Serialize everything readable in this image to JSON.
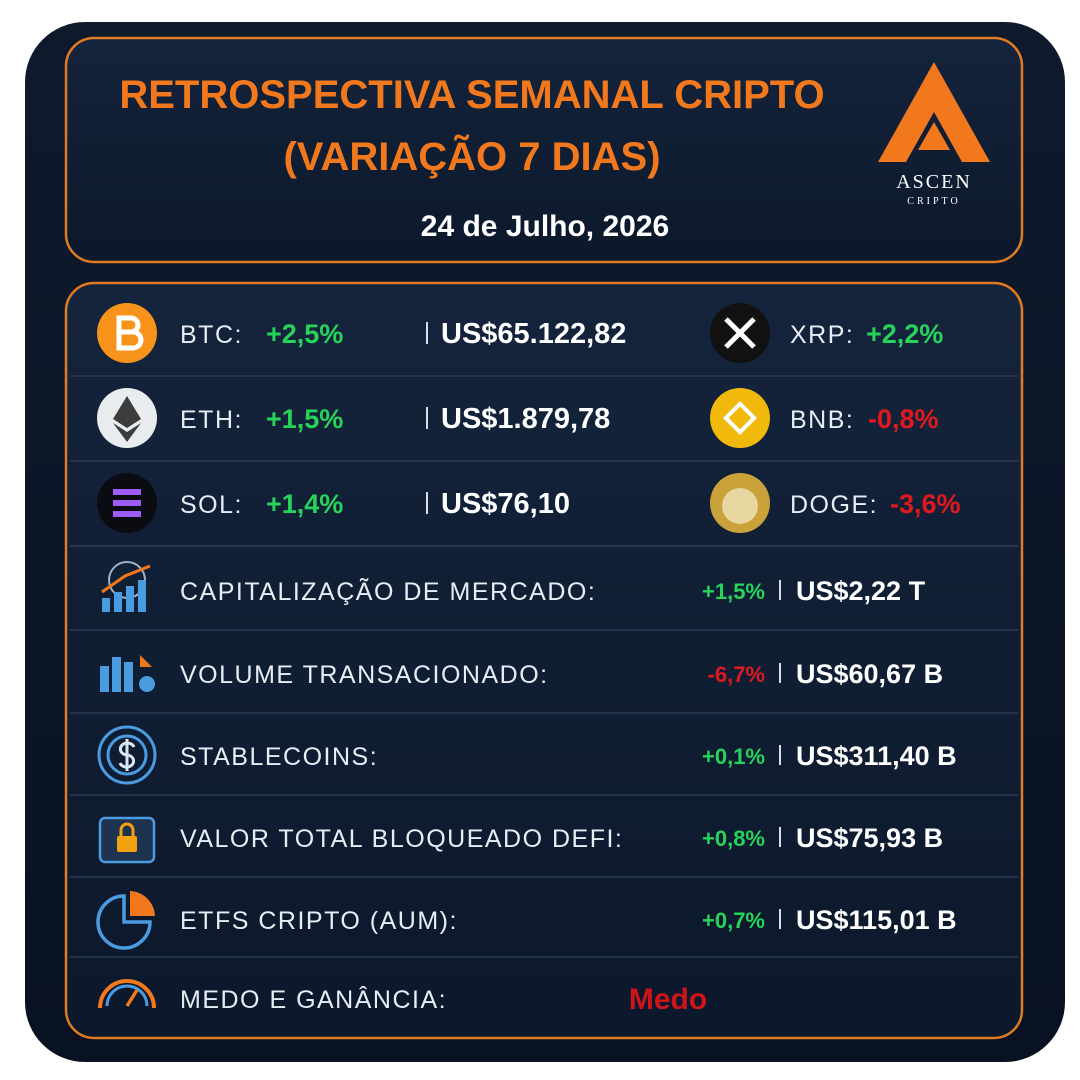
{
  "header": {
    "title_lines": [
      "RETROSPECTIVA SEMANAL CRIPTO",
      "(VARIAÇÃO 7 DIAS)"
    ],
    "date": "24 de Julho, 2026",
    "logo": {
      "name": "ASCEN",
      "tagline": "CRIPTO"
    }
  },
  "coins": [
    {
      "label": "BTC:",
      "change": "+2,5%",
      "price": "US$65.122,82"
    },
    {
      "label": "XRP:",
      "change": "+2,2%"
    },
    {
      "label": "ETH:",
      "change": "+1,5%",
      "price": "US$1.879,78"
    },
    {
      "label": "BNB:",
      "change": "-0,8%"
    },
    {
      "label": "SOL:",
      "change": "+1,4%",
      "price": "US$76,10"
    },
    {
      "label": "DOGE:",
      "change": "-3,6%"
    }
  ],
  "metrics": [
    {
      "label": "CAPITALIZAÇÃO DE MERCADO:",
      "change": "+1,5%",
      "value": "US$2,22 T"
    },
    {
      "label": "VOLUME TRANSACIONADO:",
      "change": "-6,7%",
      "value": "US$60,67 B"
    },
    {
      "label": "STABLECOINS:",
      "change": "+0,1%",
      "value": "US$311,40 B"
    },
    {
      "label": "VALOR TOTAL BLOQUEADO DEFI:",
      "change": "+0,8%",
      "value": "US$75,93 B"
    },
    {
      "label": "ETFS CRIPTO (AUM):",
      "change": "+0,7%",
      "value": "US$115,01 B"
    }
  ],
  "sentiment": {
    "label": "MEDO E GANÂNCIA:",
    "value": "Medo"
  }
}
